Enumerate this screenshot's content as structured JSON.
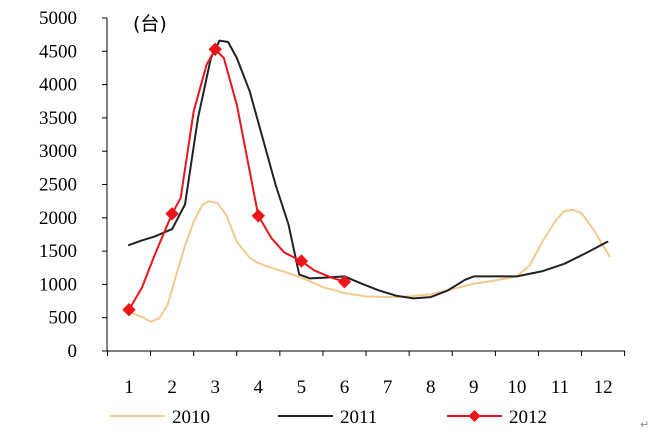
{
  "chart_data": {
    "type": "line",
    "unit_label": "(台)",
    "x": [
      "1",
      "2",
      "3",
      "4",
      "5",
      "6",
      "7",
      "8",
      "9",
      "10",
      "11",
      "12"
    ],
    "ylim": [
      0,
      5000
    ],
    "yticks": [
      0,
      500,
      1000,
      1500,
      2000,
      2500,
      3000,
      3500,
      4000,
      4500,
      5000
    ],
    "grid": false,
    "legend": "bottom",
    "series": [
      {
        "name": "2010",
        "color": "#f5c98e",
        "marker": "none",
        "points": [
          [
            1,
            590
          ],
          [
            1.3,
            510
          ],
          [
            1.5,
            440
          ],
          [
            1.7,
            490
          ],
          [
            1.9,
            700
          ],
          [
            2.1,
            1150
          ],
          [
            2.3,
            1580
          ],
          [
            2.5,
            1940
          ],
          [
            2.7,
            2190
          ],
          [
            2.85,
            2250
          ],
          [
            3.05,
            2220
          ],
          [
            3.25,
            2050
          ],
          [
            3.5,
            1640
          ],
          [
            3.8,
            1400
          ],
          [
            4,
            1320
          ],
          [
            4.3,
            1250
          ],
          [
            4.6,
            1190
          ],
          [
            5,
            1100
          ],
          [
            5.5,
            960
          ],
          [
            6,
            870
          ],
          [
            6.5,
            820
          ],
          [
            7,
            810
          ],
          [
            7.5,
            820
          ],
          [
            8,
            850
          ],
          [
            8.5,
            930
          ],
          [
            9,
            1010
          ],
          [
            9.5,
            1060
          ],
          [
            10,
            1120
          ],
          [
            10.3,
            1290
          ],
          [
            10.6,
            1650
          ],
          [
            10.9,
            1960
          ],
          [
            11.1,
            2100
          ],
          [
            11.3,
            2120
          ],
          [
            11.5,
            2070
          ],
          [
            11.8,
            1800
          ],
          [
            12,
            1580
          ],
          [
            12.15,
            1420
          ]
        ]
      },
      {
        "name": "2011",
        "color": "#222222",
        "marker": "none",
        "points": [
          [
            1,
            1590
          ],
          [
            1.3,
            1660
          ],
          [
            1.6,
            1720
          ],
          [
            2,
            1830
          ],
          [
            2.3,
            2200
          ],
          [
            2.6,
            3500
          ],
          [
            2.9,
            4400
          ],
          [
            3.1,
            4660
          ],
          [
            3.3,
            4640
          ],
          [
            3.5,
            4400
          ],
          [
            3.8,
            3900
          ],
          [
            4.1,
            3200
          ],
          [
            4.4,
            2500
          ],
          [
            4.7,
            1900
          ],
          [
            4.95,
            1150
          ],
          [
            5.2,
            1090
          ],
          [
            5.5,
            1100
          ],
          [
            6,
            1120
          ],
          [
            6.4,
            1010
          ],
          [
            6.8,
            910
          ],
          [
            7.2,
            830
          ],
          [
            7.6,
            790
          ],
          [
            8,
            810
          ],
          [
            8.4,
            910
          ],
          [
            8.8,
            1070
          ],
          [
            9,
            1120
          ],
          [
            9.5,
            1120
          ],
          [
            10,
            1120
          ],
          [
            10.6,
            1200
          ],
          [
            11.1,
            1310
          ],
          [
            11.6,
            1470
          ],
          [
            12.1,
            1640
          ]
        ]
      },
      {
        "name": "2012",
        "color": "#e8151a",
        "marker": "diamond",
        "marker_points": [
          [
            1,
            620
          ],
          [
            2,
            2060
          ],
          [
            3,
            4530
          ],
          [
            4,
            2030
          ],
          [
            5,
            1350
          ],
          [
            6,
            1040
          ]
        ],
        "points": [
          [
            1,
            620
          ],
          [
            1.3,
            950
          ],
          [
            1.6,
            1450
          ],
          [
            2,
            2060
          ],
          [
            2.2,
            2300
          ],
          [
            2.5,
            3600
          ],
          [
            2.8,
            4300
          ],
          [
            3,
            4530
          ],
          [
            3.2,
            4400
          ],
          [
            3.5,
            3700
          ],
          [
            3.8,
            2700
          ],
          [
            4,
            2030
          ],
          [
            4.3,
            1700
          ],
          [
            4.6,
            1480
          ],
          [
            5,
            1350
          ],
          [
            5.3,
            1210
          ],
          [
            5.7,
            1100
          ],
          [
            6,
            1040
          ]
        ]
      }
    ]
  }
}
